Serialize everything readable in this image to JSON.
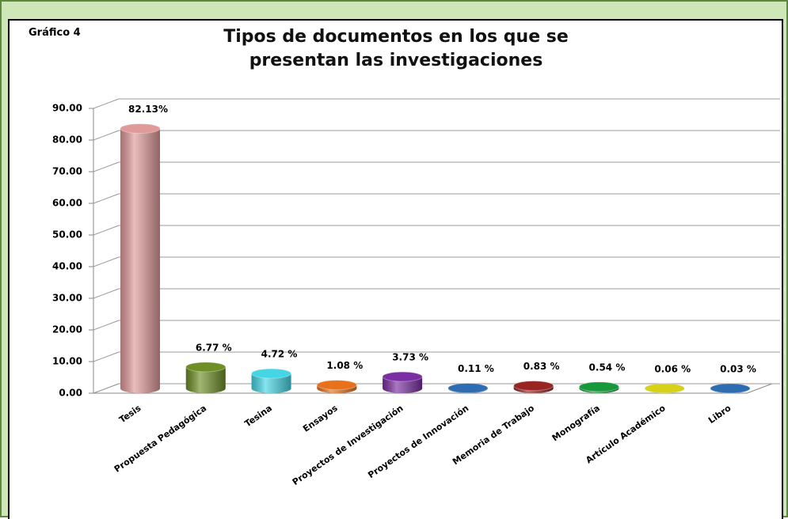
{
  "chart_data": {
    "type": "bar",
    "label": "Gráfico 4",
    "title": "Tipos de documentos en los que se presentan las investigaciones",
    "categories": [
      "Tesis",
      "Propuesta Pedagógica",
      "Tesina",
      "Ensayos",
      "Proyectos de Investigación",
      "Proyectos de Innovación",
      "Memoria de Trabajo",
      "Monografía",
      "Artículo Académico",
      "Libro"
    ],
    "values": [
      82.13,
      6.77,
      4.72,
      1.08,
      3.73,
      0.11,
      0.83,
      0.54,
      0.06,
      0.03
    ],
    "value_labels": [
      "82.13%",
      "6.77 %",
      "4.72 %",
      "1.08 %",
      "3.73 %",
      "0.11 %",
      "0.83 %",
      "0.54 %",
      "0.06 %",
      "0.03  %"
    ],
    "colors": [
      "#e09a9a",
      "#6e8f26",
      "#45d6e6",
      "#e8721c",
      "#7b2fa2",
      "#2f6db2",
      "#982424",
      "#17983a",
      "#d6d21a",
      "#2f6db2"
    ],
    "ylim": [
      0,
      90
    ],
    "yticks": [
      {
        "value": 0,
        "label": "0.00"
      },
      {
        "value": 10,
        "label": "10.00"
      },
      {
        "value": 20,
        "label": "20.00"
      },
      {
        "value": 30,
        "label": "30.00"
      },
      {
        "value": 40,
        "label": "40.00"
      },
      {
        "value": 50,
        "label": "50.00"
      },
      {
        "value": 60,
        "label": "60.00"
      },
      {
        "value": 70,
        "label": "70.00"
      },
      {
        "value": 80,
        "label": "80.00"
      },
      {
        "value": 90,
        "label": "90.00"
      }
    ],
    "grid": true
  }
}
